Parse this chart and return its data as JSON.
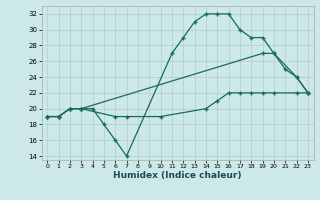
{
  "xlabel": "Humidex (Indice chaleur)",
  "bg_color": "#cce8e8",
  "line_color": "#1a6b5a",
  "grid_color": "#b0cccc",
  "xlim": [
    -0.5,
    23.5
  ],
  "ylim": [
    13.5,
    33.0
  ],
  "xticks": [
    0,
    1,
    2,
    3,
    4,
    5,
    6,
    7,
    8,
    9,
    10,
    11,
    12,
    13,
    14,
    15,
    16,
    17,
    18,
    19,
    20,
    21,
    22,
    23
  ],
  "yticks": [
    14,
    16,
    18,
    20,
    22,
    24,
    26,
    28,
    30,
    32
  ],
  "series": [
    {
      "x": [
        0,
        1,
        2,
        3,
        6,
        7,
        10,
        14,
        15,
        16,
        17,
        18,
        19,
        20,
        22,
        23
      ],
      "y": [
        19,
        19,
        20,
        20,
        19,
        19,
        19,
        20,
        21,
        22,
        22,
        22,
        22,
        22,
        22,
        22
      ]
    },
    {
      "x": [
        0,
        1,
        2,
        3,
        19,
        20,
        21,
        22,
        23
      ],
      "y": [
        19,
        19,
        20,
        20,
        27,
        27,
        25,
        24,
        22
      ]
    },
    {
      "x": [
        0,
        1,
        2,
        3,
        4,
        5,
        6,
        7,
        11,
        12,
        13,
        14,
        15,
        16,
        17,
        18,
        19,
        20,
        22,
        23
      ],
      "y": [
        19,
        19,
        20,
        20,
        20,
        18,
        16,
        14,
        27,
        29,
        31,
        32,
        32,
        32,
        30,
        29,
        29,
        27,
        24,
        22
      ]
    }
  ]
}
